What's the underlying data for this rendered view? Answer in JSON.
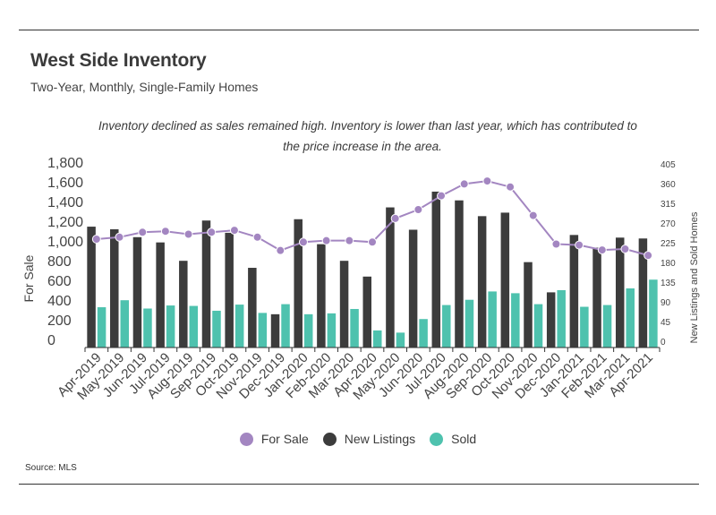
{
  "header": {
    "title": "West Side Inventory",
    "subtitle": "Two-Year, Monthly, Single-Family Homes"
  },
  "annotation": {
    "line1": "Inventory declined as sales remained high. Inventory is lower than last year, which has contributed to",
    "line2": "the price increase in the area."
  },
  "footer": {
    "source": "Source:  MLS"
  },
  "colors": {
    "for_sale": "#a386c1",
    "new_listings": "#3c3c3c",
    "sold": "#4ec2ae",
    "axis": "#333333"
  },
  "legend": {
    "for_sale": "For Sale",
    "new_listings": "New Listings",
    "sold": "Sold"
  },
  "chart_data": {
    "type": "bar",
    "title": "West Side Inventory",
    "subtitle": "Two-Year, Monthly, Single-Family Homes",
    "categories": [
      "Apr-2019",
      "May-2019",
      "Jun-2019",
      "Jul-2019",
      "Aug-2019",
      "Sep-2019",
      "Oct-2019",
      "Nov-2019",
      "Dec-2019",
      "Jan-2020",
      "Feb-2020",
      "Mar-2020",
      "Apr-2020",
      "May-2020",
      "Jun-2020",
      "Jul-2020",
      "Aug-2020",
      "Sep-2020",
      "Oct-2020",
      "Nov-2020",
      "Dec-2020",
      "Jan-2021",
      "Feb-2021",
      "Mar-2021",
      "Apr-2021"
    ],
    "ylabel_left": "For Sale",
    "ylabel_right": "New Listings and Sold Homes",
    "ylim_left": [
      0,
      1800
    ],
    "ylim_right": [
      0,
      405
    ],
    "yticks_left": [
      "0",
      "200",
      "400",
      "600",
      "800",
      "1,000",
      "1,200",
      "1,400",
      "1,600",
      "1,800"
    ],
    "yticks_right": [
      "0",
      "45",
      "90",
      "135",
      "180",
      "225",
      "270",
      "315",
      "360",
      "405"
    ],
    "series": [
      {
        "name": "New Listings",
        "axis": "right",
        "kind": "bar",
        "values": [
          276,
          270,
          252,
          240,
          198,
          290,
          262,
          182,
          76,
          293,
          236,
          198,
          162,
          320,
          269,
          356,
          336,
          300,
          308,
          195,
          126,
          257,
          228,
          251,
          249
        ]
      },
      {
        "name": "Sold",
        "axis": "right",
        "kind": "bar",
        "values": [
          92,
          108,
          89,
          96,
          95,
          84,
          98,
          79,
          99,
          76,
          78,
          88,
          39,
          34,
          65,
          97,
          109,
          128,
          124,
          99,
          131,
          93,
          97,
          135,
          155
        ]
      },
      {
        "name": "For Sale",
        "axis": "left",
        "kind": "line",
        "values": [
          1100,
          1120,
          1170,
          1180,
          1150,
          1170,
          1190,
          1120,
          985,
          1070,
          1085,
          1085,
          1070,
          1310,
          1400,
          1540,
          1660,
          1690,
          1630,
          1340,
          1050,
          1040,
          990,
          1000,
          935
        ]
      }
    ]
  }
}
